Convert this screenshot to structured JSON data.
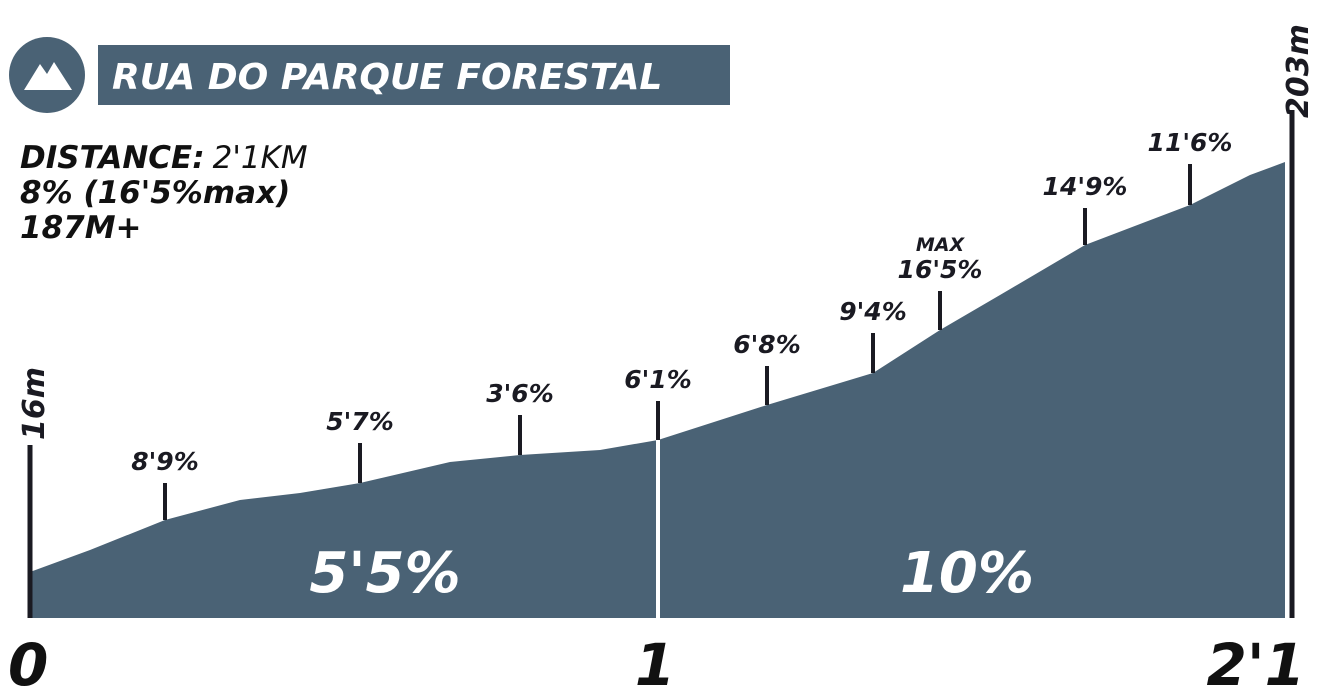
{
  "title": "RUA DO PARQUE FORESTAL",
  "stats": {
    "distance_label": "DISTANCE:",
    "distance_value": "2'1KM",
    "grade": "8% (16'5%max)",
    "gain": "187M+"
  },
  "start_elevation": "16m",
  "end_elevation": "203m",
  "markers": [
    {
      "label": "8'9%"
    },
    {
      "label": "5'7%"
    },
    {
      "label": "3'6%"
    },
    {
      "label": "6'1%"
    },
    {
      "label": "6'8%"
    },
    {
      "label": "9'4%"
    },
    {
      "note": "MAX",
      "label": "16'5%"
    },
    {
      "label": "14'9%"
    },
    {
      "label": "11'6%"
    }
  ],
  "segments": [
    "5'5%",
    "10%"
  ],
  "x_labels": [
    "0",
    "1",
    "2'1"
  ]
}
